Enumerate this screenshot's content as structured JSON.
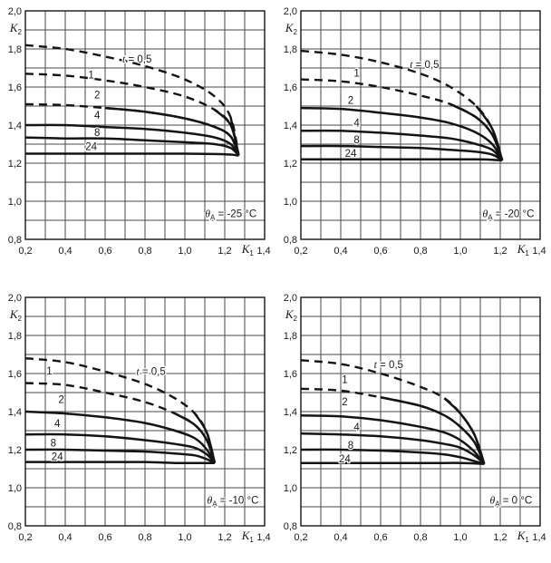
{
  "figure": {
    "background": "#ffffff",
    "ink_color": "#141414",
    "grid_color": "#4a4a4a"
  },
  "axes": {
    "xlim": [
      0.2,
      1.4
    ],
    "ylim": [
      0.8,
      2.0
    ],
    "grid_step": 0.1,
    "grid": true,
    "xticks": {
      "values": [
        0.2,
        0.4,
        0.6,
        0.8,
        1.0,
        1.2
      ],
      "labels": [
        "0,2",
        "0,4",
        "0,6",
        "0,8",
        "1,0",
        "1,2"
      ]
    },
    "x_end_tick": {
      "value": 1.4,
      "label": "1,4"
    },
    "xlabel": {
      "sym": "K",
      "sub": "1",
      "x": 1.315
    },
    "yticks": {
      "values": [
        2.0,
        1.8,
        1.6,
        1.4,
        1.2,
        1.0,
        0.8
      ],
      "labels": [
        "2,0",
        "1,8",
        "1,6",
        "1,4",
        "1,2",
        "1,0",
        "0,8"
      ]
    },
    "ylabel": {
      "sym": "K",
      "sub": "2"
    }
  },
  "chart_data": [
    {
      "type": "line",
      "ambient": "-25 °C",
      "annotation": {
        "sym": "θ",
        "sub": "A",
        "text": " = -25 °C",
        "x": 1.36,
        "y": 0.935
      },
      "t_label": {
        "italic_sym": "t",
        "text": " = 0,5",
        "x": 0.76,
        "y": 1.747
      },
      "convergence": {
        "x": 1.27,
        "y": 1.24
      },
      "x": [
        0.2,
        0.4,
        0.6,
        0.8,
        1.0,
        1.15,
        1.23,
        1.27
      ],
      "series": [
        {
          "t": "0,5",
          "dash_end_x": 1.23,
          "y": [
            1.82,
            1.8,
            1.76,
            1.71,
            1.64,
            1.55,
            1.44,
            1.24
          ],
          "label": null
        },
        {
          "t": "1",
          "dash_end_x": 1.15,
          "y": [
            1.67,
            1.66,
            1.635,
            1.6,
            1.55,
            1.48,
            1.4,
            1.24
          ],
          "label": {
            "x": 0.53,
            "y": 1.665
          }
        },
        {
          "t": "2",
          "dash_end_x": 0.6,
          "y": [
            1.51,
            1.505,
            1.49,
            1.47,
            1.435,
            1.39,
            1.34,
            1.24
          ],
          "label": {
            "x": 0.56,
            "y": 1.56
          }
        },
        {
          "t": "4",
          "dash_end_x": null,
          "y": [
            1.4,
            1.4,
            1.39,
            1.38,
            1.36,
            1.335,
            1.3,
            1.24
          ],
          "label": {
            "x": 0.56,
            "y": 1.452
          }
        },
        {
          "t": "8",
          "dash_end_x": null,
          "y": [
            1.335,
            1.33,
            1.33,
            1.32,
            1.31,
            1.3,
            1.28,
            1.24
          ],
          "label": {
            "x": 0.56,
            "y": 1.362
          }
        },
        {
          "t": "24",
          "dash_end_x": null,
          "y": [
            1.25,
            1.25,
            1.25,
            1.25,
            1.25,
            1.248,
            1.245,
            1.24
          ],
          "label": {
            "x": 0.53,
            "y": 1.287
          }
        }
      ]
    },
    {
      "type": "line",
      "ambient": "-20 °C",
      "annotation": {
        "sym": "θ",
        "sub": "A",
        "text": " = -20 °C",
        "x": 1.37,
        "y": 0.935
      },
      "t_label": {
        "italic_sym": "t",
        "text": " = 0,5",
        "x": 0.82,
        "y": 1.72
      },
      "convergence": {
        "x": 1.21,
        "y": 1.215
      },
      "x": [
        0.2,
        0.4,
        0.6,
        0.8,
        0.95,
        1.08,
        1.16,
        1.21
      ],
      "series": [
        {
          "t": "0,5",
          "dash_end_x": 1.08,
          "y": [
            1.79,
            1.77,
            1.73,
            1.67,
            1.6,
            1.5,
            1.38,
            1.215
          ],
          "label": null
        },
        {
          "t": "1",
          "dash_end_x": 0.95,
          "y": [
            1.64,
            1.63,
            1.6,
            1.555,
            1.51,
            1.44,
            1.35,
            1.215
          ],
          "label": {
            "x": 0.48,
            "y": 1.675
          }
        },
        {
          "t": "2",
          "dash_end_x": null,
          "y": [
            1.49,
            1.485,
            1.465,
            1.44,
            1.41,
            1.36,
            1.3,
            1.215
          ],
          "label": {
            "x": 0.45,
            "y": 1.53
          }
        },
        {
          "t": "4",
          "dash_end_x": null,
          "y": [
            1.37,
            1.37,
            1.36,
            1.345,
            1.33,
            1.3,
            1.27,
            1.215
          ],
          "label": {
            "x": 0.48,
            "y": 1.412
          }
        },
        {
          "t": "8",
          "dash_end_x": null,
          "y": [
            1.29,
            1.29,
            1.285,
            1.28,
            1.27,
            1.26,
            1.245,
            1.215
          ],
          "label": {
            "x": 0.48,
            "y": 1.325
          }
        },
        {
          "t": "24",
          "dash_end_x": null,
          "y": [
            1.22,
            1.22,
            1.22,
            1.22,
            1.22,
            1.22,
            1.218,
            1.215
          ],
          "label": {
            "x": 0.45,
            "y": 1.252
          }
        }
      ]
    },
    {
      "type": "line",
      "ambient": "-10 °C",
      "annotation": {
        "sym": "θ",
        "sub": "A",
        "text": " = -10 °C",
        "x": 1.37,
        "y": 0.935
      },
      "t_label": {
        "italic_sym": "t",
        "text": " = 0,5",
        "x": 0.83,
        "y": 1.613
      },
      "convergence": {
        "x": 1.15,
        "y": 1.13
      },
      "x": [
        0.2,
        0.4,
        0.6,
        0.8,
        0.95,
        1.05,
        1.11,
        1.15
      ],
      "series": [
        {
          "t": "0,5",
          "dash_end_x": 1.05,
          "y": [
            1.68,
            1.66,
            1.61,
            1.545,
            1.47,
            1.39,
            1.29,
            1.13
          ],
          "label": null
        },
        {
          "t": "1",
          "dash_end_x": 0.95,
          "y": [
            1.55,
            1.54,
            1.5,
            1.45,
            1.39,
            1.33,
            1.25,
            1.13
          ],
          "label": {
            "x": 0.32,
            "y": 1.615
          }
        },
        {
          "t": "2",
          "dash_end_x": null,
          "y": [
            1.4,
            1.39,
            1.37,
            1.34,
            1.3,
            1.26,
            1.2,
            1.13
          ],
          "label": {
            "x": 0.38,
            "y": 1.465
          }
        },
        {
          "t": "4",
          "dash_end_x": null,
          "y": [
            1.28,
            1.28,
            1.27,
            1.25,
            1.23,
            1.21,
            1.175,
            1.13
          ],
          "label": {
            "x": 0.36,
            "y": 1.338
          }
        },
        {
          "t": "8",
          "dash_end_x": null,
          "y": [
            1.2,
            1.2,
            1.195,
            1.19,
            1.18,
            1.17,
            1.15,
            1.13
          ],
          "label": {
            "x": 0.34,
            "y": 1.235
          }
        },
        {
          "t": "24",
          "dash_end_x": null,
          "y": [
            1.135,
            1.135,
            1.135,
            1.135,
            1.13,
            1.13,
            1.13,
            1.13
          ],
          "label": {
            "x": 0.36,
            "y": 1.165
          }
        }
      ]
    },
    {
      "type": "line",
      "ambient": "0 °C",
      "annotation": {
        "sym": "θ",
        "sub": "A",
        "text": " = 0 °C",
        "x": 1.36,
        "y": 0.935
      },
      "t_label": {
        "italic_sym": "t",
        "text": " = 0,5",
        "x": 0.64,
        "y": 1.648
      },
      "convergence": {
        "x": 1.12,
        "y": 1.125
      },
      "x": [
        0.2,
        0.4,
        0.6,
        0.8,
        0.92,
        1.0,
        1.07,
        1.12
      ],
      "series": [
        {
          "t": "0,5",
          "dash_end_x": 0.92,
          "y": [
            1.67,
            1.65,
            1.6,
            1.53,
            1.47,
            1.39,
            1.28,
            1.125
          ],
          "label": null
        },
        {
          "t": "1",
          "dash_end_x": 0.6,
          "y": [
            1.52,
            1.51,
            1.475,
            1.43,
            1.38,
            1.32,
            1.24,
            1.125
          ],
          "label": {
            "x": 0.42,
            "y": 1.568
          }
        },
        {
          "t": "2",
          "dash_end_x": null,
          "y": [
            1.38,
            1.375,
            1.355,
            1.32,
            1.29,
            1.25,
            1.19,
            1.125
          ],
          "label": {
            "x": 0.42,
            "y": 1.452
          }
        },
        {
          "t": "4",
          "dash_end_x": null,
          "y": [
            1.285,
            1.28,
            1.27,
            1.25,
            1.23,
            1.21,
            1.17,
            1.125
          ],
          "label": {
            "x": 0.48,
            "y": 1.318
          }
        },
        {
          "t": "8",
          "dash_end_x": null,
          "y": [
            1.2,
            1.2,
            1.195,
            1.185,
            1.175,
            1.16,
            1.14,
            1.125
          ],
          "label": {
            "x": 0.45,
            "y": 1.225
          }
        },
        {
          "t": "24",
          "dash_end_x": null,
          "y": [
            1.13,
            1.13,
            1.13,
            1.13,
            1.13,
            1.13,
            1.128,
            1.125
          ],
          "label": {
            "x": 0.42,
            "y": 1.153
          }
        }
      ]
    }
  ]
}
